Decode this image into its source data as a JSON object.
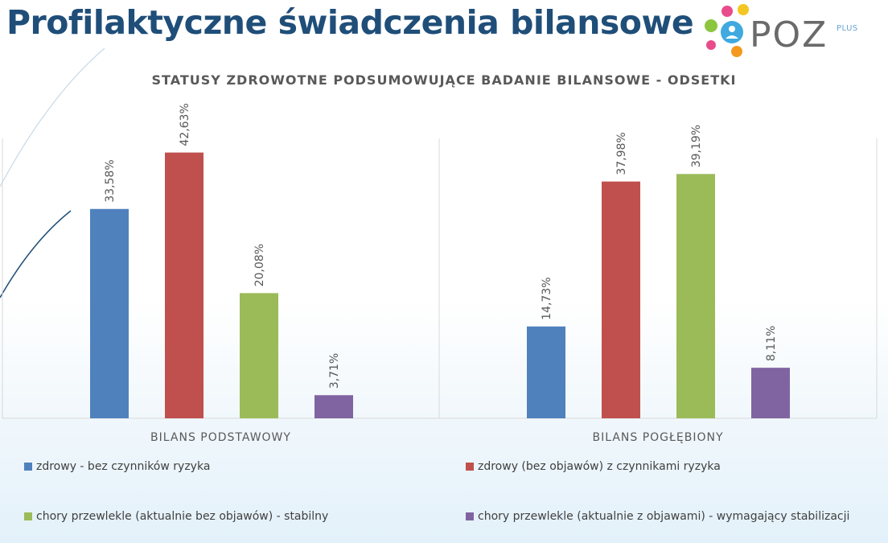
{
  "slide_title": "Profilaktyczne świadczenia bilansowe",
  "logo": {
    "text": "POZ",
    "superscript": "PLUS"
  },
  "colors": {
    "title": "#1f4e79",
    "series": [
      "#4f81bd",
      "#c0504d",
      "#9bbb59",
      "#8064a2"
    ]
  },
  "chart_data": {
    "type": "bar",
    "title": "STATUSY ZDROWOTNE PODSUMOWUJĄCE BADANIE BILANSOWE - ODSETKI",
    "groups": [
      "BILANS PODSTAWOWY",
      "BILANS POGŁĘBIONY"
    ],
    "series": [
      {
        "name": "zdrowy - bez czynników ryzyka",
        "values": [
          33.58,
          14.73
        ],
        "labels": [
          "33,58%",
          "14,73%"
        ]
      },
      {
        "name": "zdrowy (bez objawów) z czynnikami ryzyka",
        "values": [
          42.63,
          37.98
        ],
        "labels": [
          "42,63%",
          "37,98%"
        ]
      },
      {
        "name": "chory przewlekle (aktualnie bez objawów) - stabilny",
        "values": [
          20.08,
          39.19
        ],
        "labels": [
          "20,08%",
          "39,19%"
        ]
      },
      {
        "name": "chory przewlekle (aktualnie z objawami) - wymagający stabilizacji",
        "values": [
          3.71,
          8.11
        ],
        "labels": [
          "3,71%",
          "8,11%"
        ]
      }
    ],
    "ylim": [
      0,
      45
    ],
    "grid": false,
    "legend_position": "bottom"
  }
}
